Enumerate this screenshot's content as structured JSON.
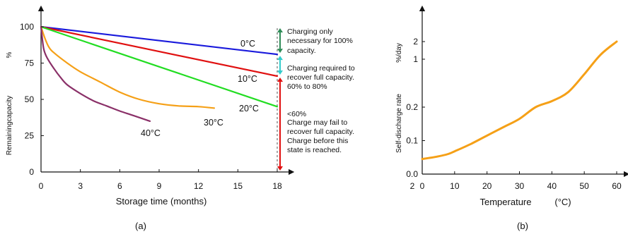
{
  "chart_data": [
    {
      "panel_label": "(a)",
      "type": "line",
      "xlabel": "Storage time (months)",
      "ylabel": "Remainingcapacity",
      "yunit": "%",
      "xlim": [
        0,
        18
      ],
      "ylim": [
        0,
        100
      ],
      "xticks": [
        "0",
        "3",
        "6",
        "9",
        "12",
        "15",
        "18"
      ],
      "yticks": [
        "0",
        "25",
        "50",
        "75",
        "100"
      ],
      "xtick_values": [
        0,
        3,
        6,
        9,
        12,
        15,
        18
      ],
      "ytick_values": [
        0,
        25,
        50,
        75,
        100
      ],
      "series": [
        {
          "name": "0°C",
          "color": "#1a1adc",
          "x": [
            0,
            18
          ],
          "y": [
            100,
            81
          ]
        },
        {
          "name": "10°C",
          "color": "#e01010",
          "x": [
            0,
            18
          ],
          "y": [
            100,
            66
          ]
        },
        {
          "name": "20°C",
          "color": "#22dd22",
          "x": [
            0,
            18
          ],
          "y": [
            100,
            45
          ]
        },
        {
          "name": "30°C",
          "color": "#f5a017",
          "x": [
            0,
            0.3,
            0.6,
            1,
            2,
            3,
            4.5,
            6,
            7.5,
            9,
            10.5,
            12,
            13.2
          ],
          "y": [
            100,
            92,
            86,
            82,
            75,
            69,
            62,
            55,
            50,
            47,
            45.5,
            45,
            44
          ]
        },
        {
          "name": "40°C",
          "color": "#8a3068",
          "x": [
            0,
            0.2,
            0.5,
            1,
            1.5,
            2,
            3,
            4,
            5,
            6,
            7,
            8.3
          ],
          "y": [
            100,
            85,
            78,
            71,
            65,
            60,
            54,
            49,
            45.5,
            42,
            39,
            35
          ]
        }
      ],
      "annotations": [
        {
          "color": "#2e8b57",
          "range": [
            81,
            100
          ],
          "text": [
            "Charging only",
            "necessary for 100%",
            "capacity."
          ]
        },
        {
          "color": "#33cccc",
          "range": [
            66,
            81
          ],
          "text": [
            "Charging required to",
            "recover full capacity.",
            "60% to 80%"
          ]
        },
        {
          "color": "#e01010",
          "range": [
            0,
            66
          ],
          "text": [
            "<60%",
            "Charge may fail to",
            "recover full capacity.",
            "Charge before this",
            "state is reached."
          ]
        }
      ]
    },
    {
      "panel_label": "(b)",
      "type": "line",
      "xlabel": "Temperature",
      "xunit": "(°C)",
      "ylabel": "Self-discharge rate",
      "yunit": "%/day",
      "xlim": [
        0,
        60
      ],
      "ylim": [
        0,
        2.5
      ],
      "xticks": [
        "0",
        "10",
        "20",
        "30",
        "40",
        "50",
        "60"
      ],
      "xtick_values": [
        0,
        10,
        20,
        30,
        40,
        50,
        60
      ],
      "yticks": [
        "0.0",
        "0.1",
        "0.2",
        "1",
        "2"
      ],
      "ytick_values": [
        0,
        0.1,
        0.2,
        1,
        2
      ],
      "ytick_note": "2",
      "series": [
        {
          "name": "",
          "color": "#f5a017",
          "x": [
            0,
            2,
            5,
            8,
            10,
            15,
            20,
            25,
            30,
            35,
            40,
            45,
            50,
            55,
            60
          ],
          "y": [
            0.045,
            0.048,
            0.053,
            0.06,
            0.068,
            0.09,
            0.115,
            0.14,
            0.165,
            0.2,
            0.3,
            0.45,
            0.75,
            1.25,
            2.0
          ]
        }
      ]
    }
  ]
}
